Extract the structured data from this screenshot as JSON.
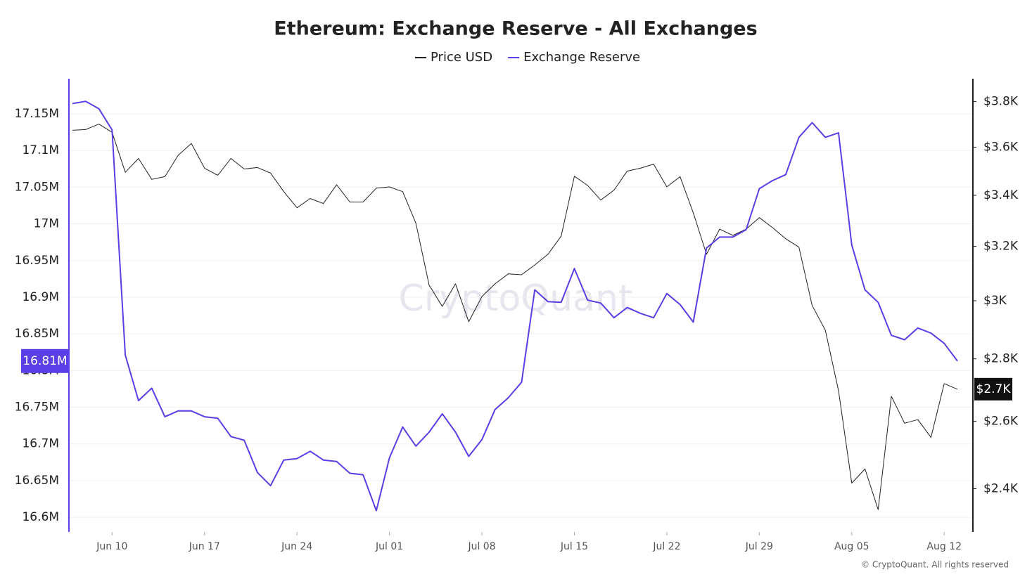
{
  "chart_data": {
    "type": "line",
    "title": "Ethereum: Exchange Reserve - All Exchanges",
    "watermark": "CryptoQuant",
    "footer": "© CryptoQuant. All rights reserved",
    "categories": [
      null,
      null,
      null,
      "Jun 10",
      null,
      null,
      null,
      null,
      null,
      null,
      "Jun 17",
      null,
      null,
      null,
      null,
      null,
      null,
      "Jun 24",
      null,
      null,
      null,
      null,
      null,
      null,
      "Jul 01",
      null,
      null,
      null,
      null,
      null,
      null,
      "Jul 08",
      null,
      null,
      null,
      null,
      null,
      null,
      "Jul 15",
      null,
      null,
      null,
      null,
      null,
      null,
      "Jul 22",
      null,
      null,
      null,
      null,
      null,
      null,
      "Jul 29",
      null,
      null,
      null,
      null,
      null,
      null,
      "Aug 05",
      null,
      null,
      null,
      null,
      null,
      null,
      "Aug 12",
      null
    ],
    "series": [
      {
        "name": "Price USD",
        "color": "#222222",
        "axis": "y2",
        "end_label": "$2.7K",
        "values": [
          3673,
          3676,
          3700,
          3664,
          3494,
          3552,
          3465,
          3476,
          3565,
          3616,
          3511,
          3482,
          3552,
          3508,
          3514,
          3491,
          3415,
          3350,
          3387,
          3367,
          3443,
          3373,
          3373,
          3429,
          3434,
          3415,
          3289,
          3056,
          2980,
          3061,
          2926,
          3015,
          3061,
          3097,
          3094,
          3130,
          3170,
          3239,
          3478,
          3440,
          3381,
          3421,
          3499,
          3511,
          3528,
          3434,
          3476,
          3330,
          3170,
          3266,
          3242,
          3266,
          3311,
          3272,
          3229,
          3197,
          2983,
          2897,
          2696,
          2416,
          2457,
          2341,
          2678,
          2594,
          2605,
          2551,
          2719,
          2701
        ]
      },
      {
        "name": "Exchange Reserve",
        "color": "#5a3ee6",
        "end_label": "16.81M",
        "values": [
          17164000,
          17167000,
          17157000,
          17128000,
          16821000,
          16759000,
          16776000,
          16737000,
          16745000,
          16745000,
          16737000,
          16735000,
          16710000,
          16705000,
          16661000,
          16643000,
          16678000,
          16680000,
          16690000,
          16678000,
          16676000,
          16660000,
          16658000,
          16609000,
          16681000,
          16723000,
          16697000,
          16716000,
          16741000,
          16716000,
          16683000,
          16706000,
          16747000,
          16763000,
          16784000,
          16910000,
          16894000,
          16893000,
          16939000,
          16896000,
          16892000,
          16872000,
          16886000,
          16878000,
          16872000,
          16905000,
          16890000,
          16866000,
          16967000,
          16982000,
          16982000,
          16992000,
          17048000,
          17059000,
          17067000,
          17118000,
          17138000,
          17118000,
          17124000,
          16971000,
          16910000,
          16893000,
          16848000,
          16842000,
          16858000,
          16851000,
          16837000,
          16813000
        ]
      }
    ],
    "ylim": [
      16580000,
      17195000
    ],
    "yticks": [
      {
        "value": 16600000,
        "label": "16.6M"
      },
      {
        "value": 16650000,
        "label": "16.65M"
      },
      {
        "value": 16700000,
        "label": "16.7M"
      },
      {
        "value": 16750000,
        "label": "16.75M"
      },
      {
        "value": 16800000,
        "label": "16.8M"
      },
      {
        "value": 16850000,
        "label": "16.85M"
      },
      {
        "value": 16900000,
        "label": "16.9M"
      },
      {
        "value": 16950000,
        "label": "16.95M"
      },
      {
        "value": 17000000,
        "label": "17M"
      },
      {
        "value": 17050000,
        "label": "17.05M"
      },
      {
        "value": 17100000,
        "label": "17.1M"
      },
      {
        "value": 17150000,
        "label": "17.15M"
      }
    ],
    "y2lim": [
      2280,
      3895
    ],
    "y2scale": "log",
    "y2ticks": [
      {
        "value": 2400,
        "label": "$2.4K"
      },
      {
        "value": 2600,
        "label": "$2.6K"
      },
      {
        "value": 2800,
        "label": "$2.8K"
      },
      {
        "value": 3000,
        "label": "$3K"
      },
      {
        "value": 3200,
        "label": "$3.2K"
      },
      {
        "value": 3400,
        "label": "$3.4K"
      },
      {
        "value": 3600,
        "label": "$3.6K"
      },
      {
        "value": 3800,
        "label": "$3.8K"
      }
    ],
    "grid": true
  }
}
